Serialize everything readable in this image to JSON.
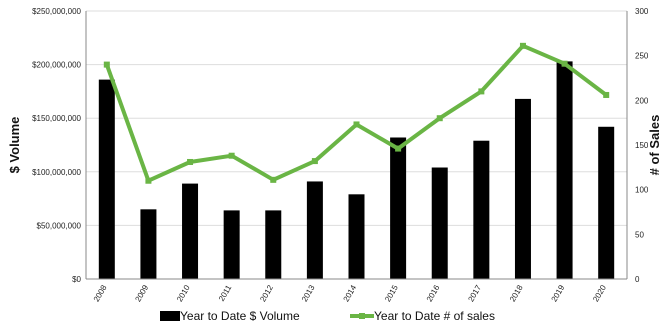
{
  "chart_data": {
    "type": "bar",
    "categories": [
      "2008",
      "2009",
      "2010",
      "2011",
      "2012",
      "2013",
      "2014",
      "2015",
      "2016",
      "2017",
      "2018",
      "2019",
      "2020"
    ],
    "series": [
      {
        "name": "Year to Date $ Volume",
        "type": "bar",
        "axis": "left",
        "color": "#000000",
        "values": [
          186000000,
          65000000,
          89000000,
          64000000,
          64000000,
          91000000,
          79000000,
          132000000,
          104000000,
          129000000,
          168000000,
          203000000,
          142000000
        ]
      },
      {
        "name": "Year to Date # of sales",
        "type": "line",
        "axis": "right",
        "color": "#6ab545",
        "values": [
          240,
          110,
          131,
          138,
          111,
          132,
          173,
          146,
          180,
          210,
          261,
          241,
          206
        ]
      }
    ],
    "y_left": {
      "label": "$ Volume",
      "range": [
        0,
        250000000
      ],
      "ticks": [
        0,
        50000000,
        100000000,
        150000000,
        200000000,
        250000000
      ],
      "tick_labels": [
        "$0",
        "$50,000,000",
        "$100,000,000",
        "$150,000,000",
        "$200,000,000",
        "$250,000,000"
      ]
    },
    "y_right": {
      "label": "# of Sales",
      "range": [
        0,
        300
      ],
      "ticks": [
        0,
        50,
        100,
        150,
        200,
        250,
        300
      ],
      "tick_labels": [
        "0",
        "50",
        "100",
        "150",
        "200",
        "250",
        "300"
      ]
    },
    "grid": true,
    "legend": "bottom",
    "colors": {
      "bar": "#000000",
      "line": "#6ab545",
      "grid": "#dddddd",
      "axis": "#888888"
    }
  }
}
